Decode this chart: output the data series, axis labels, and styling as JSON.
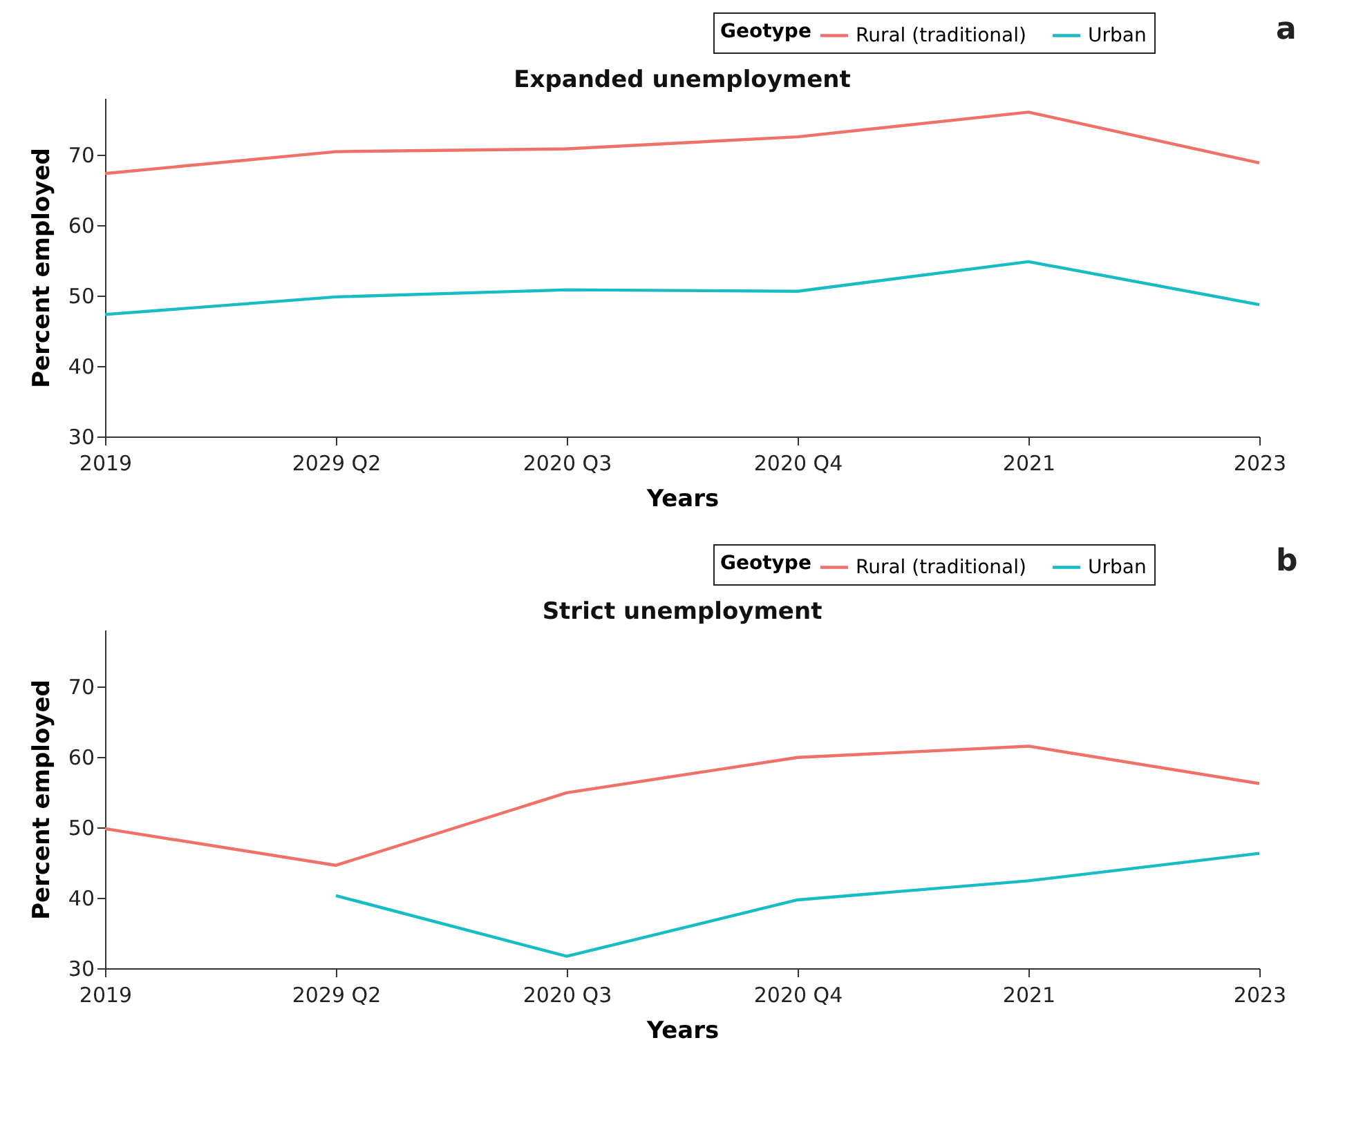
{
  "chart_data": [
    {
      "type": "line",
      "title": "Expanded unemployment",
      "xlabel": "Years",
      "ylabel": "Percent employed",
      "legend_title": "Geotype",
      "legend": "top right",
      "annotations": [
        "a"
      ],
      "categories": [
        "2019",
        "2029 Q2",
        "2020 Q3",
        "2020 Q4",
        "2021",
        "2023"
      ],
      "ylim": [
        30,
        78
      ],
      "yticks": [
        30,
        40,
        50,
        60,
        70
      ],
      "series": [
        {
          "name": "Rural (traditional)",
          "color": "#f07167",
          "values": [
            67.3,
            70.4,
            70.8,
            72.5,
            76.0,
            68.8
          ]
        },
        {
          "name": "Urban",
          "color": "#17bcc4",
          "values": [
            47.3,
            49.8,
            50.8,
            50.6,
            54.8,
            48.7
          ]
        }
      ]
    },
    {
      "type": "line",
      "title": "Strict unemployment",
      "xlabel": "Years",
      "ylabel": "Percent employed",
      "legend_title": "Geotype",
      "legend": "top right",
      "annotations": [
        "b"
      ],
      "categories": [
        "2019",
        "2029 Q2",
        "2020 Q3",
        "2020 Q4",
        "2021",
        "2023"
      ],
      "ylim": [
        30,
        78
      ],
      "yticks": [
        30,
        40,
        50,
        60,
        70
      ],
      "series": [
        {
          "name": "Rural (traditional)",
          "color": "#f07167",
          "values": [
            49.8,
            44.6,
            54.9,
            59.9,
            61.5,
            56.2
          ]
        },
        {
          "name": "Urban",
          "color": "#17bcc4",
          "values": [
            null,
            40.3,
            31.7,
            39.7,
            42.4,
            46.3
          ]
        }
      ]
    }
  ]
}
